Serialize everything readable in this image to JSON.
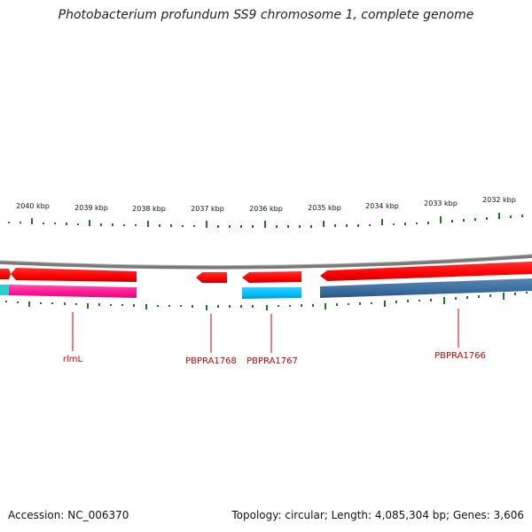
{
  "title": "Photobacterium profundum SS9 chromosome 1, complete genome",
  "footer": {
    "accession": "Accession: NC_006370",
    "summary": "Topology: circular; Length: 4,085,304 bp; Genes: 3,606"
  },
  "ruler_labels": [
    "2040 kbp",
    "2039 kbp",
    "2038 kbp",
    "2037 kbp",
    "2036 kbp",
    "2035 kbp",
    "2034 kbp",
    "2033 kbp",
    "2032 kbp"
  ],
  "gene_labels": [
    "rlmL",
    "PBPRA1768",
    "PBPRA1767",
    "PBPRA1766"
  ],
  "colors": {
    "forward_feature": "#ff0000",
    "cds_pink": "#ff1493",
    "cds_cyan": "#00bfff",
    "cds_steel": "#3a6ea0",
    "backbone": "#808080",
    "tick": "#1a7a1a",
    "label": "#cc0000"
  }
}
